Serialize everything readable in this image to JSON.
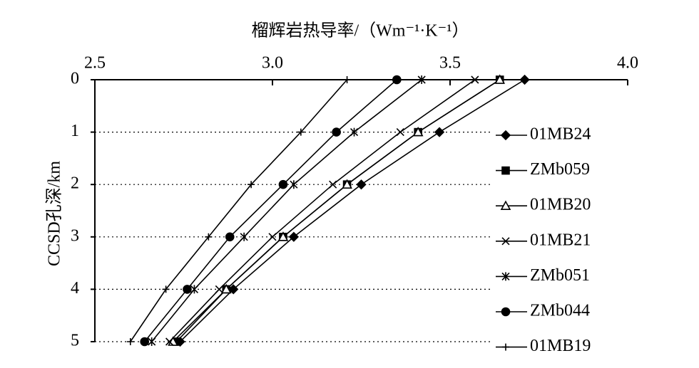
{
  "chart_data": {
    "type": "line",
    "title": "榴辉岩热导率/（Wm⁻¹·K⁻¹）",
    "y_label": "CCSD孔深/km",
    "depth": [
      0,
      1,
      2,
      3,
      4,
      5
    ],
    "xlim": [
      2.5,
      4.0
    ],
    "xticks": [
      2.5,
      {
        "value": 3,
        "label": "3.0"
      },
      3.5,
      {
        "value": 4,
        "label": "4.0"
      }
    ],
    "ylim": [
      0,
      5
    ],
    "yticks": [
      0,
      1,
      2,
      3,
      4,
      5
    ],
    "y_inverted": true,
    "grid": true,
    "legend": "right",
    "series": [
      {
        "name": "01MB24",
        "color": "#000000",
        "marker": "diamond",
        "values": [
          3.71,
          3.47,
          3.25,
          3.06,
          2.89,
          2.74
        ]
      },
      {
        "name": "ZMb059",
        "color": "#000000",
        "marker": "square",
        "values": [
          3.64,
          3.41,
          3.21,
          3.03,
          2.87,
          2.73
        ]
      },
      {
        "name": "01MB20",
        "color": "#000000",
        "marker": "triangle",
        "values": [
          3.64,
          3.41,
          3.21,
          3.03,
          2.87,
          2.72
        ]
      },
      {
        "name": "01MB21",
        "color": "#000000",
        "marker": "x",
        "values": [
          3.57,
          3.36,
          3.17,
          3.0,
          2.85,
          2.71
        ]
      },
      {
        "name": "ZMb051",
        "color": "#000000",
        "marker": "star",
        "values": [
          3.42,
          3.23,
          3.06,
          2.92,
          2.78,
          2.66
        ]
      },
      {
        "name": "ZMb044",
        "color": "#000000",
        "marker": "circle",
        "values": [
          3.35,
          3.18,
          3.03,
          2.88,
          2.76,
          2.64
        ]
      },
      {
        "name": "01MB19",
        "color": "#000000",
        "marker": "plus",
        "values": [
          3.21,
          3.08,
          2.94,
          2.82,
          2.7,
          2.6
        ]
      }
    ]
  }
}
